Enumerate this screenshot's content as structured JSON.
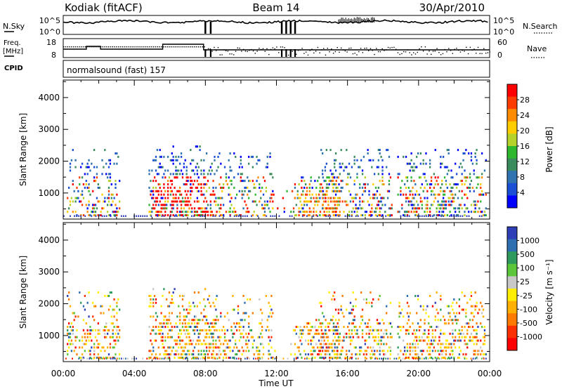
{
  "header": {
    "station": "Kodiak (fitACF)",
    "beam": "Beam 14",
    "date": "30/Apr/2010"
  },
  "strip1": {
    "left_label": "N.Sky",
    "right_label": "N.Search",
    "left_ticks": [
      "10^5",
      "10^0"
    ],
    "right_ticks": [
      "10^5",
      "10^0"
    ]
  },
  "strip2": {
    "left_label_1": "Freq.",
    "left_label_2": "[MHz]",
    "right_label": "Nave",
    "left_ticks": [
      "18",
      "8"
    ],
    "right_ticks": [
      "60",
      "0"
    ]
  },
  "cpid": {
    "label": "CPID",
    "text": "normalsound (fast) 157"
  },
  "chart_data": [
    {
      "type": "heatmap",
      "name": "power",
      "ylabel": "Slant Range [km]",
      "xlabel": "Time UT",
      "ylim": [
        180,
        4550
      ],
      "y_ticks": [
        1000,
        2000,
        3000,
        4000
      ],
      "x_ticks": [
        "00:00",
        "04:00",
        "08:00",
        "12:00",
        "16:00",
        "20:00",
        "00:00"
      ],
      "colorbar_label": "Power [dB]",
      "colorbar_ticks": [
        "4",
        "8",
        "12",
        "16",
        "20",
        "24",
        "28"
      ],
      "colorbar_colors": [
        "#0000ff",
        "#1a4fd6",
        "#2f73b0",
        "#3a8c5c",
        "#2eb82e",
        "#b4d22a",
        "#ffcc00",
        "#ff8c00",
        "#ff3c00",
        "#ff0000"
      ]
    },
    {
      "type": "heatmap",
      "name": "velocity",
      "ylabel": "Slant Range [km]",
      "xlabel": "Time UT",
      "ylim": [
        180,
        4550
      ],
      "y_ticks": [
        1000,
        2000,
        3000,
        4000
      ],
      "x_ticks": [
        "00:00",
        "04:00",
        "08:00",
        "12:00",
        "16:00",
        "20:00",
        "00:00"
      ],
      "colorbar_label": "Velocity [m s⁻¹]",
      "colorbar_ticks": [
        "1000",
        "500",
        "100",
        "25",
        "-25",
        "-100",
        "-500",
        "-1000"
      ],
      "colorbar_colors": [
        "#2f3fb8",
        "#2e6fb2",
        "#2e9a5e",
        "#5cc63a",
        "#c8c8c8",
        "#ffee00",
        "#ffb000",
        "#ff7a00",
        "#ff3000",
        "#ff0000"
      ]
    }
  ],
  "x_axis": {
    "label": "Time UT",
    "ticks": [
      "00:00",
      "04:00",
      "08:00",
      "12:00",
      "16:00",
      "20:00",
      "00:00"
    ]
  }
}
